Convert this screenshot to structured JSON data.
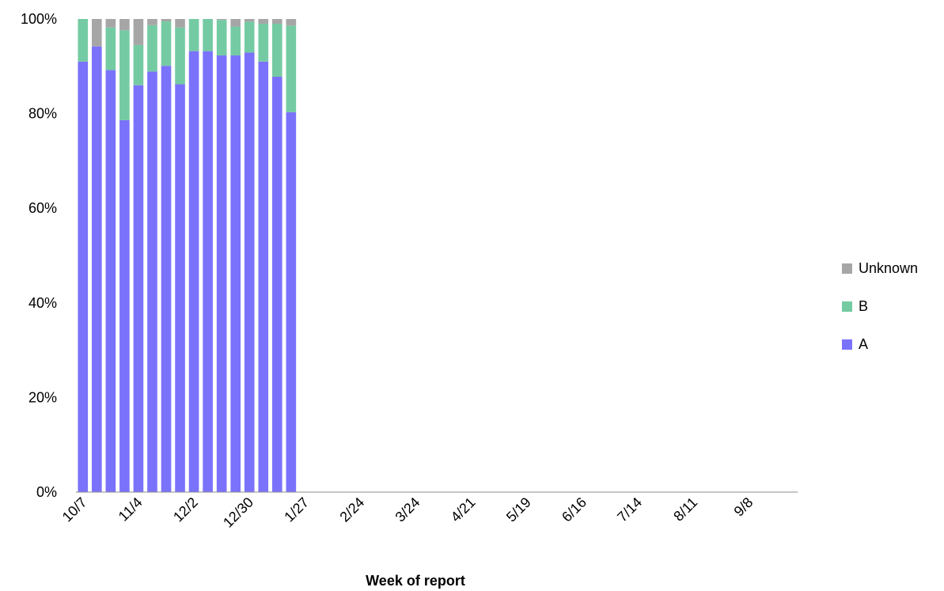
{
  "chart_data": {
    "type": "bar",
    "stacked": true,
    "percent_stacked": true,
    "title": "",
    "xlabel": "Week of report",
    "ylabel": "",
    "ylim": [
      0,
      100
    ],
    "y_ticks": [
      "0%",
      "20%",
      "40%",
      "60%",
      "80%",
      "100%"
    ],
    "x_tick_labels": [
      "10/7",
      "11/4",
      "12/2",
      "12/30",
      "1/27",
      "2/24",
      "3/24",
      "4/21",
      "5/19",
      "6/16",
      "7/14",
      "8/11",
      "9/8"
    ],
    "x_tick_every": 4,
    "total_weeks": 52,
    "categories": [
      "10/7",
      "10/14",
      "10/21",
      "10/28",
      "11/4",
      "11/11",
      "11/18",
      "11/25",
      "12/2",
      "12/9",
      "12/16",
      "12/23",
      "12/30",
      "1/6",
      "1/13",
      "1/20"
    ],
    "series": [
      {
        "name": "A",
        "color": "#7b72fb",
        "values": [
          91,
          94.2,
          89.2,
          78.6,
          86,
          88.9,
          90.1,
          86.2,
          93.2,
          93.2,
          92.3,
          92.3,
          92.9,
          91,
          87.8,
          80.3
        ]
      },
      {
        "name": "B",
        "color": "#74cba3",
        "values": [
          9,
          0,
          9,
          19,
          8.5,
          9.8,
          9.4,
          12,
          6.8,
          6.8,
          7.5,
          6.1,
          6.5,
          8,
          11.2,
          18.3
        ]
      },
      {
        "name": "Unknown",
        "color": "#a6a6a6",
        "values": [
          0,
          5.8,
          1.8,
          2.4,
          5.5,
          1.3,
          0.5,
          1.8,
          0,
          0,
          0.2,
          1.6,
          0.6,
          1,
          1,
          1.4
        ]
      }
    ],
    "legend": {
      "position": "right",
      "order": [
        "Unknown",
        "B",
        "A"
      ]
    },
    "grid": false
  }
}
